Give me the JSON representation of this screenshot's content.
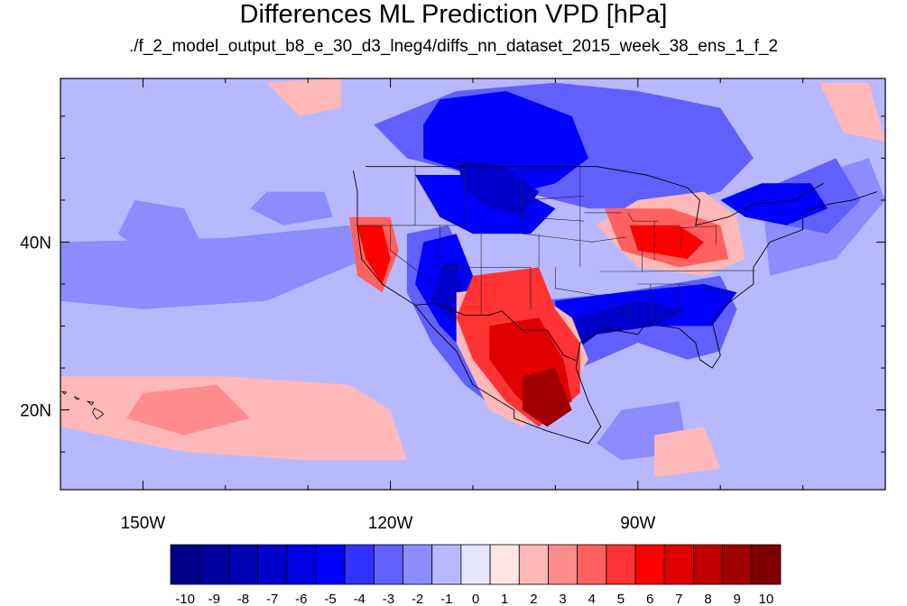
{
  "title": "Differences ML Prediction VPD [hPa]",
  "subtitle": "./f_2_model_output_b8_e_30_d3_lneg4/diffs_nn_dataset_2015_week_38_ens_1_f_2",
  "map": {
    "lon_range": [
      -160,
      -60
    ],
    "lat_range": [
      10.5,
      59.5
    ],
    "x_ticks": [
      {
        "lon": -150,
        "label": "150W"
      },
      {
        "lon": -120,
        "label": "120W"
      },
      {
        "lon": -90,
        "label": "90W"
      }
    ],
    "y_ticks": [
      {
        "lat": 40,
        "label": "40N"
      },
      {
        "lat": 20,
        "label": "20N"
      }
    ],
    "background_level": -1
  },
  "colorbar": {
    "levels": [
      -10,
      -9,
      -8,
      -7,
      -6,
      -5,
      -4,
      -3,
      -2,
      -1,
      0,
      1,
      2,
      3,
      4,
      5,
      6,
      7,
      8,
      9,
      10
    ],
    "colors": [
      "#00008a",
      "#00009e",
      "#0000b5",
      "#0000cc",
      "#0000e3",
      "#0000ff",
      "#3333ff",
      "#6060ff",
      "#8c8cff",
      "#b8b8ff",
      "#e6e6fa",
      "#ffe5e5",
      "#ffb8b8",
      "#ff8c8c",
      "#ff6060",
      "#ff3333",
      "#ff0000",
      "#e00000",
      "#c00000",
      "#a00000",
      "#800000"
    ]
  },
  "regions": [
    {
      "level": -2,
      "pts": [
        [
          -160,
          40
        ],
        [
          -140,
          40.5
        ],
        [
          -125,
          42
        ],
        [
          -123,
          38
        ],
        [
          -135,
          33
        ],
        [
          -150,
          32
        ],
        [
          -160,
          33
        ]
      ]
    },
    {
      "level": -2,
      "pts": [
        [
          -151,
          45
        ],
        [
          -145,
          44
        ],
        [
          -143,
          40
        ],
        [
          -149,
          38
        ],
        [
          -153,
          41
        ]
      ]
    },
    {
      "level": -2,
      "pts": [
        [
          -135,
          46
        ],
        [
          -128,
          46
        ],
        [
          -127,
          43
        ],
        [
          -133,
          42
        ],
        [
          -137,
          44
        ]
      ]
    },
    {
      "level": -2,
      "pts": [
        [
          -92,
          20
        ],
        [
          -85,
          21
        ],
        [
          -84,
          15
        ],
        [
          -92,
          14
        ],
        [
          -95,
          16
        ]
      ]
    },
    {
      "level": -2,
      "pts": [
        [
          -75,
          46
        ],
        [
          -62,
          50
        ],
        [
          -60,
          45
        ],
        [
          -66,
          38
        ],
        [
          -74,
          36
        ]
      ]
    },
    {
      "level": -3,
      "pts": [
        [
          -112,
          58
        ],
        [
          -100,
          59
        ],
        [
          -90,
          58
        ],
        [
          -80,
          56
        ],
        [
          -76,
          50
        ],
        [
          -80,
          46
        ],
        [
          -88,
          44
        ],
        [
          -96,
          44
        ],
        [
          -104,
          46
        ],
        [
          -110,
          48
        ],
        [
          -118,
          50
        ],
        [
          -122,
          54
        ]
      ]
    },
    {
      "level": -3,
      "pts": [
        [
          -73,
          47
        ],
        [
          -66,
          50
        ],
        [
          -63,
          45
        ],
        [
          -67,
          41
        ],
        [
          -72,
          42
        ]
      ]
    },
    {
      "level": -3,
      "pts": [
        [
          -102,
          33
        ],
        [
          -92,
          34
        ],
        [
          -80,
          36
        ],
        [
          -78,
          32
        ],
        [
          -80,
          27
        ],
        [
          -84,
          26
        ],
        [
          -90,
          28
        ],
        [
          -97,
          25
        ],
        [
          -102,
          26
        ]
      ]
    },
    {
      "level": -3,
      "pts": [
        [
          -118,
          41
        ],
        [
          -113,
          42
        ],
        [
          -110,
          36
        ],
        [
          -108,
          29
        ],
        [
          -104,
          24
        ],
        [
          -107,
          20
        ],
        [
          -111,
          23
        ],
        [
          -115,
          28
        ],
        [
          -118,
          34
        ]
      ]
    },
    {
      "level": -5,
      "pts": [
        [
          -114,
          57
        ],
        [
          -106,
          58
        ],
        [
          -98,
          55
        ],
        [
          -96,
          50
        ],
        [
          -100,
          47
        ],
        [
          -104,
          46
        ],
        [
          -110,
          48
        ],
        [
          -116,
          50
        ],
        [
          -116,
          54
        ]
      ]
    },
    {
      "level": -5,
      "pts": [
        [
          -117,
          48
        ],
        [
          -110,
          48
        ],
        [
          -104,
          46
        ],
        [
          -100,
          44
        ],
        [
          -103,
          41
        ],
        [
          -110,
          41
        ],
        [
          -114,
          43
        ]
      ]
    },
    {
      "level": -5,
      "pts": [
        [
          -116,
          40
        ],
        [
          -112,
          41
        ],
        [
          -110,
          36
        ],
        [
          -110,
          31
        ],
        [
          -108,
          28
        ],
        [
          -110,
          26
        ],
        [
          -114,
          30
        ],
        [
          -117,
          35
        ]
      ]
    },
    {
      "level": -5,
      "pts": [
        [
          -100,
          33
        ],
        [
          -92,
          34
        ],
        [
          -82,
          35
        ],
        [
          -78,
          34
        ],
        [
          -81,
          30
        ],
        [
          -88,
          30
        ],
        [
          -95,
          29
        ],
        [
          -100,
          27
        ]
      ]
    },
    {
      "level": -5,
      "pts": [
        [
          -80,
          45
        ],
        [
          -75,
          47
        ],
        [
          -69,
          47
        ],
        [
          -67,
          44
        ],
        [
          -72,
          42
        ],
        [
          -77,
          43
        ]
      ]
    },
    {
      "level": -7,
      "pts": [
        [
          -112,
          50
        ],
        [
          -106,
          49
        ],
        [
          -102,
          46
        ],
        [
          -104,
          43
        ],
        [
          -108,
          44
        ],
        [
          -111,
          46
        ]
      ]
    },
    {
      "level": -7,
      "pts": [
        [
          -114,
          37
        ],
        [
          -112,
          38
        ],
        [
          -111,
          33
        ],
        [
          -110,
          29
        ],
        [
          -112,
          30
        ],
        [
          -115,
          33
        ]
      ]
    },
    {
      "level": -7,
      "pts": [
        [
          -98,
          31
        ],
        [
          -90,
          33
        ],
        [
          -84,
          32
        ],
        [
          -88,
          30
        ],
        [
          -95,
          29
        ],
        [
          -99,
          26
        ]
      ]
    },
    {
      "level": 2,
      "pts": [
        [
          -160,
          24
        ],
        [
          -140,
          24
        ],
        [
          -125,
          23
        ],
        [
          -120,
          20
        ],
        [
          -118,
          14
        ],
        [
          -130,
          14
        ],
        [
          -145,
          15
        ],
        [
          -160,
          18
        ]
      ]
    },
    {
      "level": 2,
      "pts": [
        [
          -90,
          45
        ],
        [
          -82,
          46
        ],
        [
          -78,
          43
        ],
        [
          -77,
          38
        ],
        [
          -82,
          36
        ],
        [
          -90,
          37
        ],
        [
          -95,
          42
        ]
      ]
    },
    {
      "level": 2,
      "pts": [
        [
          -135,
          59
        ],
        [
          -126,
          59.5
        ],
        [
          -126,
          56
        ],
        [
          -131,
          55
        ]
      ]
    },
    {
      "level": 2,
      "pts": [
        [
          -68,
          59
        ],
        [
          -62,
          59
        ],
        [
          -60,
          52
        ],
        [
          -65,
          53
        ]
      ]
    },
    {
      "level": 2,
      "pts": [
        [
          -88,
          17
        ],
        [
          -82,
          18
        ],
        [
          -80,
          13
        ],
        [
          -88,
          12
        ]
      ]
    },
    {
      "level": 2,
      "pts": [
        [
          -112,
          34
        ],
        [
          -104,
          35
        ],
        [
          -98,
          31
        ],
        [
          -96,
          26
        ],
        [
          -100,
          20
        ],
        [
          -104,
          18
        ],
        [
          -108,
          20
        ],
        [
          -112,
          28
        ]
      ]
    },
    {
      "level": 3,
      "pts": [
        [
          -150,
          22
        ],
        [
          -141,
          23
        ],
        [
          -137,
          19
        ],
        [
          -145,
          17
        ],
        [
          -152,
          19
        ]
      ]
    },
    {
      "level": 4,
      "pts": [
        [
          -125,
          43
        ],
        [
          -120,
          43
        ],
        [
          -119,
          39
        ],
        [
          -121,
          34
        ],
        [
          -124,
          36
        ]
      ]
    },
    {
      "level": 4,
      "pts": [
        [
          -94,
          44
        ],
        [
          -86,
          44
        ],
        [
          -80,
          42
        ],
        [
          -79,
          38
        ],
        [
          -85,
          37
        ],
        [
          -92,
          39
        ]
      ]
    },
    {
      "level": 5,
      "pts": [
        [
          -110,
          36
        ],
        [
          -102,
          37
        ],
        [
          -100,
          32
        ],
        [
          -97,
          28
        ],
        [
          -97,
          22
        ],
        [
          -102,
          18
        ],
        [
          -106,
          21
        ],
        [
          -110,
          26
        ],
        [
          -112,
          31
        ]
      ]
    },
    {
      "level": 6,
      "pts": [
        [
          -124,
          42
        ],
        [
          -121,
          42
        ],
        [
          -120,
          38
        ],
        [
          -121,
          35
        ],
        [
          -123,
          38
        ]
      ]
    },
    {
      "level": 6,
      "pts": [
        [
          -91,
          42
        ],
        [
          -85,
          42
        ],
        [
          -82,
          40
        ],
        [
          -84,
          38
        ],
        [
          -90,
          39
        ]
      ]
    },
    {
      "level": 7,
      "pts": [
        [
          -108,
          30
        ],
        [
          -102,
          31
        ],
        [
          -99,
          26
        ],
        [
          -98,
          21
        ],
        [
          -102,
          19
        ],
        [
          -105,
          22
        ],
        [
          -108,
          26
        ]
      ]
    },
    {
      "level": 9,
      "pts": [
        [
          -104,
          24
        ],
        [
          -100,
          25
        ],
        [
          -98,
          20
        ],
        [
          -101,
          18
        ],
        [
          -104,
          20
        ]
      ]
    }
  ],
  "coast": [
    [
      [
        -124.5,
        48.5
      ],
      [
        -124,
        46
      ],
      [
        -124,
        42
      ],
      [
        -123.5,
        38
      ],
      [
        -121,
        35
      ],
      [
        -117,
        32.5
      ],
      [
        -115,
        30
      ],
      [
        -112,
        27
      ],
      [
        -110,
        23
      ],
      [
        -105,
        20
      ],
      [
        -105,
        19
      ],
      [
        -101,
        17.5
      ],
      [
        -96,
        16
      ],
      [
        -94.5,
        18
      ],
      [
        -96,
        21
      ],
      [
        -97.5,
        25
      ],
      [
        -97,
        28
      ],
      [
        -94,
        29.7
      ],
      [
        -90,
        29
      ],
      [
        -89,
        30.3
      ],
      [
        -85,
        29.7
      ],
      [
        -83,
        28
      ],
      [
        -82.5,
        26
      ],
      [
        -81,
        25
      ],
      [
        -80,
        26.5
      ],
      [
        -81,
        30.5
      ],
      [
        -80,
        32
      ],
      [
        -76,
        35
      ],
      [
        -76,
        37
      ],
      [
        -74,
        40
      ],
      [
        -70,
        41.5
      ],
      [
        -70,
        43.5
      ],
      [
        -67,
        44.5
      ],
      [
        -64,
        45
      ],
      [
        -61,
        46
      ]
    ]
  ],
  "borders": [
    [
      [
        -123,
        49
      ],
      [
        -95,
        49
      ],
      [
        -89,
        48
      ],
      [
        -84,
        46.5
      ],
      [
        -82.5,
        45
      ],
      [
        -83,
        42
      ],
      [
        -79,
        43
      ],
      [
        -76,
        44.5
      ],
      [
        -71,
        45
      ],
      [
        -67.5,
        47
      ]
    ],
    [
      [
        -117,
        32.5
      ],
      [
        -114.7,
        32.7
      ],
      [
        -111,
        31.3
      ],
      [
        -108,
        31.3
      ],
      [
        -106.5,
        31.8
      ],
      [
        -104,
        29.5
      ],
      [
        -101,
        29.5
      ],
      [
        -99,
        26.5
      ],
      [
        -97.5,
        25.9
      ]
    ]
  ],
  "states": [
    [
      [
        -117,
        49
      ],
      [
        -117,
        42
      ]
    ],
    [
      [
        -111,
        49
      ],
      [
        -111,
        42
      ]
    ],
    [
      [
        -104,
        49
      ],
      [
        -104,
        41
      ]
    ],
    [
      [
        -97,
        49
      ],
      [
        -97,
        37
      ]
    ],
    [
      [
        -124.2,
        42
      ],
      [
        -111,
        42
      ]
    ],
    [
      [
        -120,
        42
      ],
      [
        -120,
        39
      ],
      [
        -114.6,
        35
      ]
    ],
    [
      [
        -114,
        42
      ],
      [
        -114,
        37
      ]
    ],
    [
      [
        -114,
        37
      ],
      [
        -103,
        37
      ]
    ],
    [
      [
        -109,
        41
      ],
      [
        -109,
        31.3
      ]
    ],
    [
      [
        -102,
        41
      ],
      [
        -102,
        37
      ]
    ],
    [
      [
        -103,
        37
      ],
      [
        -103,
        32
      ]
    ],
    [
      [
        -104,
        41
      ],
      [
        -95.3,
        40
      ]
    ],
    [
      [
        -104,
        45
      ],
      [
        -96.5,
        45.5
      ]
    ],
    [
      [
        -104,
        43
      ],
      [
        -96.5,
        42.5
      ]
    ],
    [
      [
        -100,
        37
      ],
      [
        -100,
        34.5
      ],
      [
        -94.5,
        33.6
      ]
    ],
    [
      [
        -94.6,
        36.5
      ],
      [
        -89.5,
        36.5
      ],
      [
        -81.7,
        36.6
      ],
      [
        -75.8,
        36.6
      ]
    ],
    [
      [
        -90,
        35
      ],
      [
        -85,
        35
      ],
      [
        -84.3,
        35
      ],
      [
        -78.6,
        33.9
      ]
    ],
    [
      [
        -88.5,
        35
      ],
      [
        -88.1,
        30.4
      ]
    ],
    [
      [
        -85,
        35
      ],
      [
        -85,
        31
      ],
      [
        -87.6,
        31
      ]
    ],
    [
      [
        -91,
        33
      ],
      [
        -91,
        31
      ],
      [
        -94,
        33
      ]
    ],
    [
      [
        -92,
        43.5
      ],
      [
        -96.5,
        43.5
      ]
    ],
    [
      [
        -91.2,
        43.5
      ],
      [
        -90.6,
        42.5
      ],
      [
        -87.5,
        42.5
      ]
    ],
    [
      [
        -88,
        42.5
      ],
      [
        -88,
        37.8
      ]
    ],
    [
      [
        -84.8,
        41.7
      ],
      [
        -84.8,
        39
      ]
    ],
    [
      [
        -80.5,
        42
      ],
      [
        -80.5,
        39.7
      ]
    ],
    [
      [
        -84.8,
        41.7
      ],
      [
        -80.5,
        41.9
      ]
    ],
    [
      [
        -95.8,
        40
      ],
      [
        -91.4,
        40.6
      ]
    ],
    [
      [
        -89.5,
        36.5
      ],
      [
        -89.5,
        39
      ]
    ]
  ],
  "islands": [
    [
      [
        -155.9,
        20.2
      ],
      [
        -155.1,
        19.8
      ],
      [
        -154.8,
        19.5
      ],
      [
        -155.6,
        18.9
      ],
      [
        -156.1,
        19.7
      ]
    ],
    [
      [
        -156.7,
        21
      ],
      [
        -156,
        20.9
      ],
      [
        -156.2,
        20.6
      ]
    ],
    [
      [
        -158.3,
        21.6
      ],
      [
        -157.7,
        21.3
      ],
      [
        -158.1,
        21.3
      ]
    ],
    [
      [
        -159.8,
        22.2
      ],
      [
        -159.3,
        22.1
      ],
      [
        -159.5,
        21.9
      ]
    ]
  ]
}
